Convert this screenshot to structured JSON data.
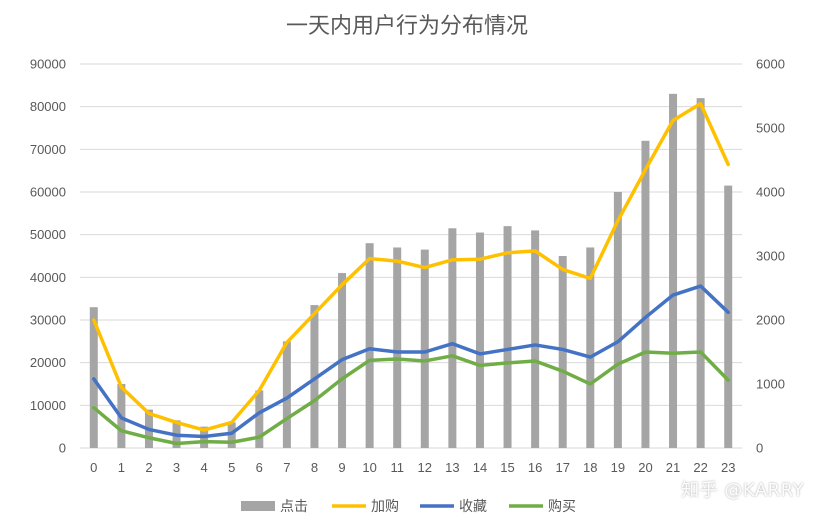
{
  "chart_data": {
    "type": "bar+line",
    "title": "一天内用户行为分布情况",
    "categories": [
      "0",
      "1",
      "2",
      "3",
      "4",
      "5",
      "6",
      "7",
      "8",
      "9",
      "10",
      "11",
      "12",
      "13",
      "14",
      "15",
      "16",
      "17",
      "18",
      "19",
      "20",
      "21",
      "22",
      "23"
    ],
    "y_left": {
      "min": 0,
      "max": 90000,
      "ticks": [
        "0",
        "10000",
        "20000",
        "30000",
        "40000",
        "50000",
        "60000",
        "70000",
        "80000",
        "90000"
      ]
    },
    "y_right": {
      "min": 0,
      "max": 6000,
      "ticks": [
        "0",
        "1000",
        "2000",
        "3000",
        "4000",
        "5000",
        "6000"
      ]
    },
    "bar_series": {
      "name": "点击",
      "axis": "left",
      "color": "#a5a5a5",
      "values": [
        33000,
        15000,
        9000,
        6500,
        5000,
        6000,
        13500,
        25000,
        33500,
        41000,
        48000,
        47000,
        46500,
        51500,
        50500,
        52000,
        51000,
        45000,
        47000,
        60000,
        72000,
        83000,
        82000,
        61500
      ]
    },
    "line_series": [
      {
        "name": "加购",
        "axis": "right",
        "color": "#ffc000",
        "values": [
          2000,
          950,
          540,
          400,
          280,
          400,
          900,
          1650,
          2100,
          2550,
          2960,
          2920,
          2820,
          2940,
          2950,
          3050,
          3080,
          2790,
          2650,
          3550,
          4350,
          5120,
          5380,
          4430
        ]
      },
      {
        "name": "收藏",
        "axis": "right",
        "color": "#4472c4",
        "values": [
          1080,
          470,
          290,
          200,
          180,
          230,
          550,
          780,
          1080,
          1380,
          1550,
          1500,
          1500,
          1630,
          1470,
          1540,
          1610,
          1540,
          1420,
          1660,
          2040,
          2390,
          2530,
          2120
        ]
      },
      {
        "name": "购买",
        "axis": "right",
        "color": "#70ad47",
        "values": [
          630,
          270,
          160,
          70,
          100,
          90,
          170,
          460,
          740,
          1080,
          1370,
          1390,
          1360,
          1440,
          1290,
          1330,
          1360,
          1200,
          1000,
          1310,
          1500,
          1480,
          1500,
          1060
        ]
      }
    ],
    "legend": [
      "点击",
      "加购",
      "收藏",
      "购买"
    ],
    "legend_position": "bottom",
    "grid": true
  },
  "watermark": "知乎 @KARRY"
}
